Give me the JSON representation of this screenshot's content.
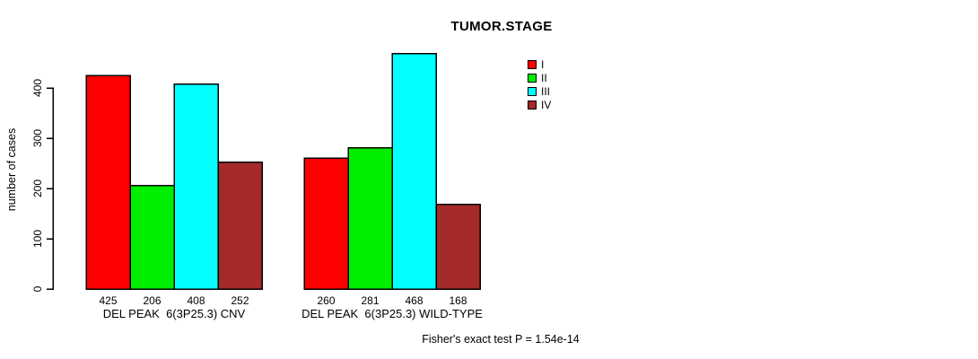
{
  "chart_data": {
    "type": "bar",
    "title": "TUMOR.STAGE",
    "xlabel": "",
    "ylabel": "number of cases",
    "ylim": [
      0,
      400
    ],
    "yticks": [
      0,
      100,
      200,
      300,
      400
    ],
    "grid": false,
    "legend_position": "top-right",
    "categories": [
      "DEL PEAK  6(3P25.3) CNV",
      "DEL PEAK  6(3P25.3) WILD-TYPE"
    ],
    "series": [
      {
        "name": "I",
        "color": "#FF0000",
        "values": [
          425,
          260
        ]
      },
      {
        "name": "II",
        "color": "#00EE00",
        "values": [
          206,
          281
        ]
      },
      {
        "name": "III",
        "color": "#00FFFF",
        "values": [
          408,
          468
        ]
      },
      {
        "name": "IV",
        "color": "#A52A2A",
        "values": [
          252,
          168
        ]
      }
    ],
    "bar_value_labels": [
      [
        425,
        206,
        408,
        252
      ],
      [
        260,
        281,
        468,
        168
      ]
    ],
    "annotation": "Fisher's exact test P = 1.54e-14",
    "axis_color": "#000000",
    "bar_border_color": "#000000"
  }
}
